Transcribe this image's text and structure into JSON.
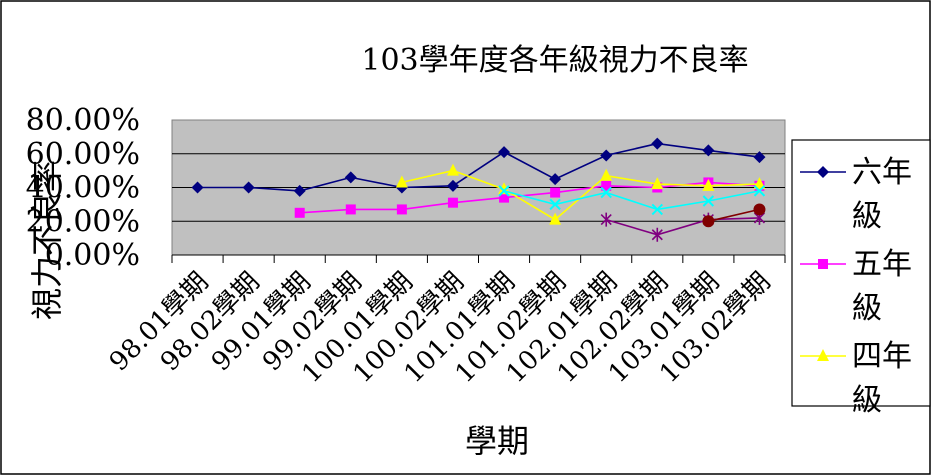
{
  "chart_data": {
    "type": "line",
    "title": "103學年度各年級視力不良率",
    "xlabel": "學期",
    "ylabel": "視力不良率",
    "ylim": [
      0,
      0.8
    ],
    "yticks": [
      "0.00%",
      "20.00%",
      "40.00%",
      "60.00%",
      "80.00%"
    ],
    "categories": [
      "98.01學期",
      "98.02學期",
      "99.01學期",
      "99.02學期",
      "100.01學期",
      "100.02學期",
      "101.01學期",
      "101.02學期",
      "102.01學期",
      "102.02學期",
      "103.01學期",
      "103.02學期"
    ],
    "grid": true,
    "legend_position": "right",
    "series": [
      {
        "name": "六年級",
        "color": "#000080",
        "marker": "diamond",
        "values": [
          0.4,
          0.4,
          0.38,
          0.46,
          0.4,
          0.41,
          0.61,
          0.45,
          0.59,
          0.66,
          0.62,
          0.58
        ]
      },
      {
        "name": "五年級",
        "color": "#ff00ff",
        "marker": "square",
        "values": [
          null,
          null,
          0.25,
          0.27,
          0.27,
          0.31,
          0.34,
          0.37,
          0.41,
          0.4,
          0.43,
          0.41
        ]
      },
      {
        "name": "四年級",
        "color": "#ffff00",
        "marker": "triangle",
        "values": [
          null,
          null,
          null,
          null,
          0.43,
          0.5,
          0.39,
          0.21,
          0.47,
          0.42,
          0.41,
          0.42
        ]
      },
      {
        "name": "",
        "color": "#00ffff",
        "marker": "x",
        "values": [
          null,
          null,
          null,
          null,
          null,
          null,
          0.38,
          0.3,
          0.37,
          0.27,
          0.32,
          0.38
        ]
      },
      {
        "name": "",
        "color": "#800080",
        "marker": "star",
        "values": [
          null,
          null,
          null,
          null,
          null,
          null,
          null,
          null,
          0.21,
          0.12,
          0.21,
          0.22
        ]
      },
      {
        "name": "",
        "color": "#800000",
        "marker": "circle",
        "values": [
          null,
          null,
          null,
          null,
          null,
          null,
          null,
          null,
          null,
          null,
          0.2,
          0.27
        ]
      }
    ]
  }
}
